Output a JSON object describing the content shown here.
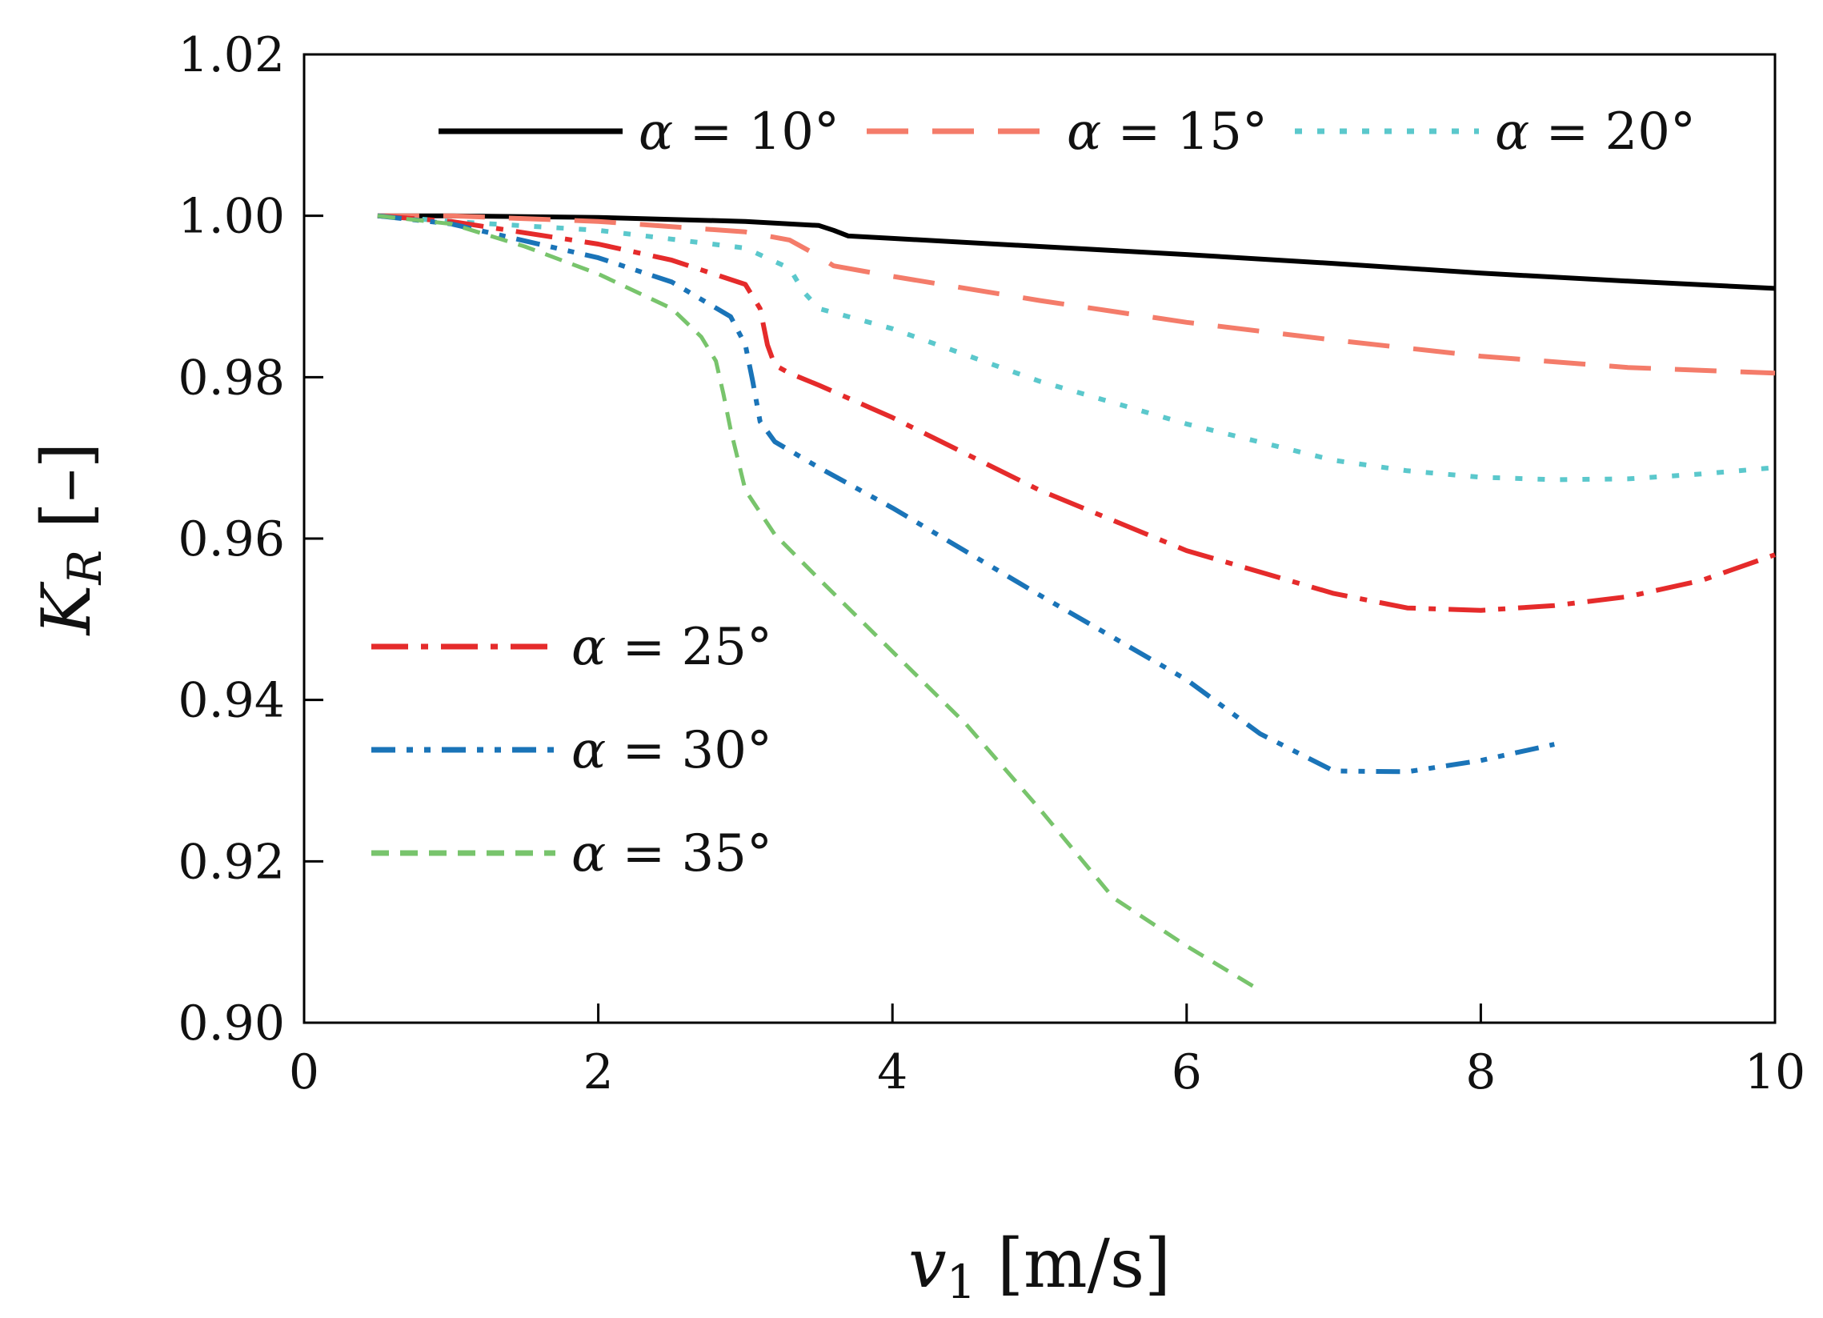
{
  "chart_data": {
    "type": "line",
    "title": "",
    "xlabel": {
      "symbol": "v",
      "subscript": "1",
      "unit": " [m/s]"
    },
    "ylabel": {
      "symbol": "K",
      "subscript": "R",
      "unit": " [–]"
    },
    "xlim": [
      0,
      10
    ],
    "ylim": [
      0.9,
      1.02
    ],
    "grid": false,
    "x_ticks": [
      0,
      2,
      4,
      6,
      8,
      10
    ],
    "x_tick_labels": [
      "0",
      "2",
      "4",
      "6",
      "8",
      "10"
    ],
    "y_ticks": [
      0.9,
      0.92,
      0.94,
      0.96,
      0.98,
      1.0,
      1.02
    ],
    "y_tick_labels": [
      "0.90",
      "0.92",
      "0.94",
      "0.96",
      "0.98",
      "1.00",
      "1.02"
    ],
    "legend_top": "top, single row",
    "legend_bottom": "lower-left, single column",
    "series": [
      {
        "name": "α = 10°",
        "symbol": "α",
        "rest": " = 10°",
        "color": "#000000",
        "style": "solid",
        "legend": "top",
        "x": [
          0.5,
          1,
          2,
          3,
          3.5,
          3.6,
          3.7,
          4,
          5,
          6,
          7,
          8,
          9,
          10
        ],
        "y": [
          1.0,
          1.0,
          0.9998,
          0.9993,
          0.9988,
          0.9982,
          0.9975,
          0.9972,
          0.9962,
          0.9952,
          0.9941,
          0.9929,
          0.9919,
          0.991
        ]
      },
      {
        "name": "α = 15°",
        "symbol": "α",
        "rest": " = 15°",
        "color": "#f47c6a",
        "style": "dashed",
        "legend": "top",
        "x": [
          0.5,
          1,
          2,
          3,
          3.3,
          3.5,
          3.6,
          4,
          5,
          6,
          7,
          8,
          9,
          10
        ],
        "y": [
          1.0,
          1.0,
          0.9993,
          0.998,
          0.997,
          0.995,
          0.9938,
          0.9925,
          0.9895,
          0.9868,
          0.9846,
          0.9826,
          0.9812,
          0.9805
        ]
      },
      {
        "name": "α = 20°",
        "symbol": "α",
        "rest": " = 20°",
        "color": "#5bc8cc",
        "style": "dotted",
        "legend": "top",
        "x": [
          0.5,
          1,
          2,
          3,
          3.3,
          3.4,
          3.5,
          4,
          5,
          6,
          7,
          7.5,
          8,
          8.5,
          9,
          9.5,
          10
        ],
        "y": [
          1.0,
          0.9993,
          0.9982,
          0.996,
          0.9935,
          0.9905,
          0.9885,
          0.986,
          0.9795,
          0.9742,
          0.9697,
          0.9684,
          0.9676,
          0.9673,
          0.9674,
          0.968,
          0.9688
        ]
      },
      {
        "name": "α = 25°",
        "symbol": "α",
        "rest": " = 25°",
        "color": "#e52b2b",
        "style": "dashdot",
        "legend": "bottom",
        "x": [
          0.5,
          1,
          2,
          2.5,
          3,
          3.1,
          3.15,
          3.2,
          3.3,
          3.5,
          4,
          5,
          6,
          7,
          7.5,
          8,
          8.5,
          9,
          9.5,
          10
        ],
        "y": [
          1.0,
          0.9993,
          0.9965,
          0.9945,
          0.9915,
          0.9885,
          0.984,
          0.9815,
          0.9805,
          0.979,
          0.975,
          0.966,
          0.9585,
          0.9532,
          0.9514,
          0.9511,
          0.9517,
          0.9528,
          0.9548,
          0.958
        ]
      },
      {
        "name": "α = 30°",
        "symbol": "α",
        "rest": " = 30°",
        "color": "#1a74b8",
        "style": "dashdotdot",
        "legend": "bottom",
        "x": [
          0.5,
          1,
          2,
          2.5,
          2.9,
          3.0,
          3.05,
          3.1,
          3.2,
          3.5,
          4,
          5,
          6,
          6.5,
          7,
          7.5,
          8,
          8.5
        ],
        "y": [
          1.0,
          0.999,
          0.9948,
          0.9918,
          0.9875,
          0.984,
          0.9795,
          0.9745,
          0.972,
          0.9688,
          0.9638,
          0.953,
          0.9425,
          0.9358,
          0.9312,
          0.9311,
          0.9325,
          0.9345
        ]
      },
      {
        "name": "α = 35°",
        "symbol": "α",
        "rest": " = 35°",
        "color": "#78c46c",
        "style": "shortdash",
        "legend": "bottom",
        "x": [
          0.5,
          1,
          1.5,
          2,
          2.5,
          2.7,
          2.8,
          2.85,
          2.9,
          3.0,
          3.2,
          3.5,
          4,
          4.5,
          5,
          5.5,
          6,
          6.5
        ],
        "y": [
          1.0,
          0.999,
          0.9962,
          0.9928,
          0.9885,
          0.985,
          0.982,
          0.978,
          0.9735,
          0.966,
          0.9605,
          0.955,
          0.946,
          0.937,
          0.9265,
          0.9155,
          0.9095,
          0.904
        ]
      }
    ]
  }
}
